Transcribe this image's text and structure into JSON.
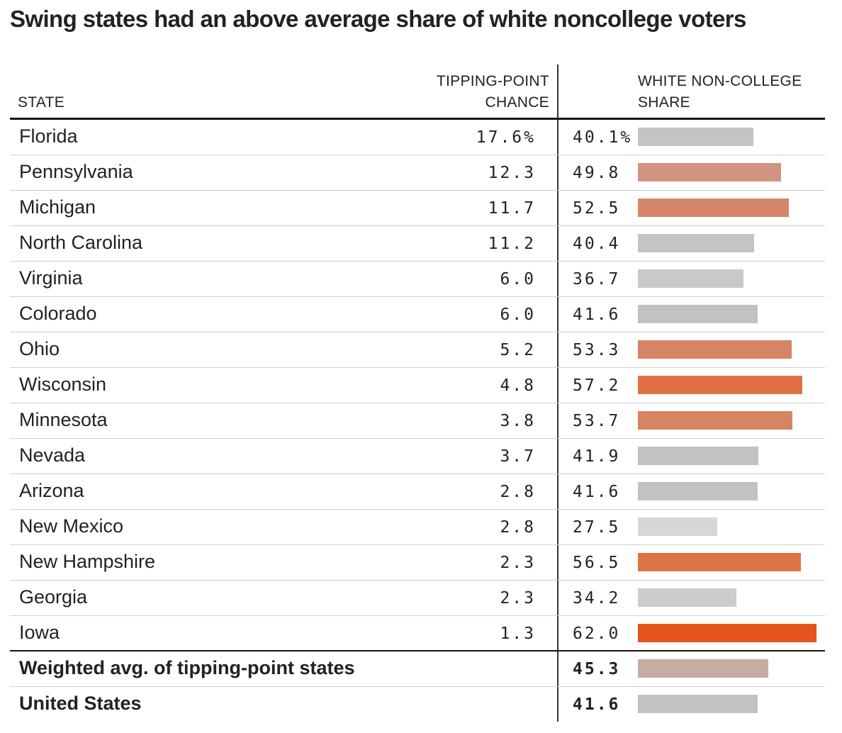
{
  "title": "Swing states had an above average share of white noncollege voters",
  "headers": {
    "state": "STATE",
    "tipping_point": [
      "TIPPING-POINT",
      "CHANCE"
    ],
    "white_noncollege": [
      "WHITE NON-COLLEGE",
      "SHARE"
    ]
  },
  "colors": {
    "text": "#222222",
    "rule": "#111111",
    "bar_low": "#d4d4d4",
    "bar_high": "#e5541c"
  },
  "chart_data": {
    "type": "table",
    "columns": [
      "STATE",
      "TIPPING-POINT CHANCE",
      "WHITE NON-COLLEGE SHARE"
    ],
    "rows": [
      {
        "state": "Florida",
        "tipping_point": "17.6%",
        "white_noncollege": "40.1%",
        "share_value": 40.1,
        "bar_color": "#c4c4c4"
      },
      {
        "state": "Pennsylvania",
        "tipping_point": "12.3",
        "white_noncollege": "49.8",
        "share_value": 49.8,
        "bar_color": "#d19480"
      },
      {
        "state": "Michigan",
        "tipping_point": "11.7",
        "white_noncollege": "52.5",
        "share_value": 52.5,
        "bar_color": "#d6876a"
      },
      {
        "state": "North Carolina",
        "tipping_point": "11.2",
        "white_noncollege": "40.4",
        "share_value": 40.4,
        "bar_color": "#c4c4c4"
      },
      {
        "state": "Virginia",
        "tipping_point": "6.0",
        "white_noncollege": "36.7",
        "share_value": 36.7,
        "bar_color": "#c9c9c9"
      },
      {
        "state": "Colorado",
        "tipping_point": "6.0",
        "white_noncollege": "41.6",
        "share_value": 41.6,
        "bar_color": "#c2c2c2"
      },
      {
        "state": "Ohio",
        "tipping_point": "5.2",
        "white_noncollege": "53.3",
        "share_value": 53.3,
        "bar_color": "#d58566"
      },
      {
        "state": "Wisconsin",
        "tipping_point": "4.8",
        "white_noncollege": "57.2",
        "share_value": 57.2,
        "bar_color": "#e07144"
      },
      {
        "state": "Minnesota",
        "tipping_point": "3.8",
        "white_noncollege": "53.7",
        "share_value": 53.7,
        "bar_color": "#d78462"
      },
      {
        "state": "Nevada",
        "tipping_point": "3.7",
        "white_noncollege": "41.9",
        "share_value": 41.9,
        "bar_color": "#c2c2c2"
      },
      {
        "state": "Arizona",
        "tipping_point": "2.8",
        "white_noncollege": "41.6",
        "share_value": 41.6,
        "bar_color": "#c2c2c2"
      },
      {
        "state": "New Mexico",
        "tipping_point": "2.8",
        "white_noncollege": "27.5",
        "share_value": 27.5,
        "bar_color": "#d6d6d6"
      },
      {
        "state": "New Hampshire",
        "tipping_point": "2.3",
        "white_noncollege": "56.5",
        "share_value": 56.5,
        "bar_color": "#dd7448"
      },
      {
        "state": "Georgia",
        "tipping_point": "2.3",
        "white_noncollege": "34.2",
        "share_value": 34.2,
        "bar_color": "#cccccc"
      },
      {
        "state": "Iowa",
        "tipping_point": "1.3",
        "white_noncollege": "62.0",
        "share_value": 62.0,
        "bar_color": "#e5541c"
      }
    ],
    "summary_rows": [
      {
        "state": "Weighted avg. of tipping-point states",
        "tipping_point": "",
        "white_noncollege": "45.3",
        "share_value": 45.3,
        "bar_color": "#c6aca1"
      },
      {
        "state": "United States",
        "tipping_point": "",
        "white_noncollege": "41.6",
        "share_value": 41.6,
        "bar_color": "#c2c2c2"
      }
    ],
    "bar_scale_max": 62.0
  }
}
